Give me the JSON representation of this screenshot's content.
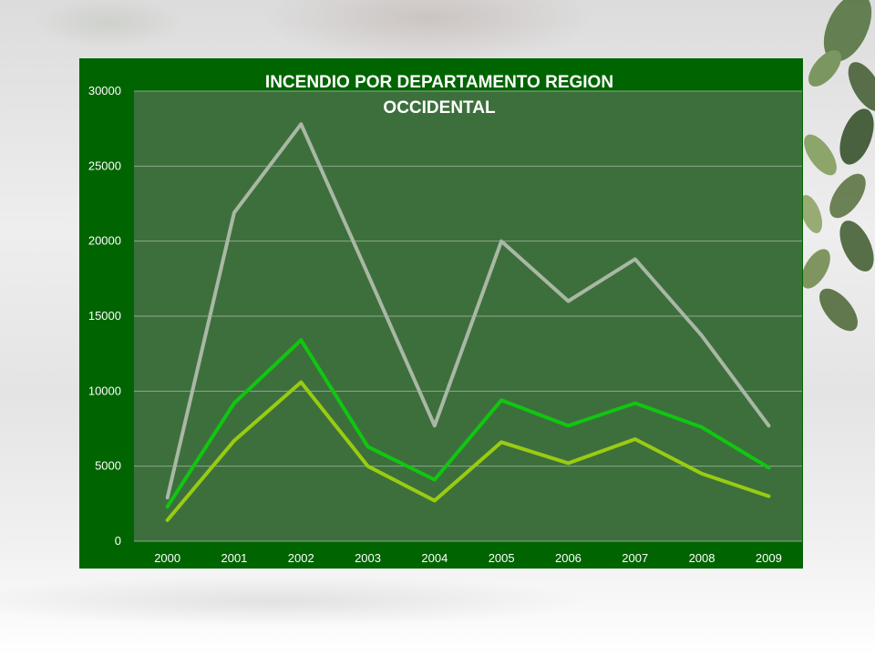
{
  "chart_data": {
    "type": "line",
    "title_lines": [
      "INCENDIO POR DEPARTAMENTO REGION",
      "OCCIDENTAL"
    ],
    "categories": [
      "2000",
      "2001",
      "2002",
      "2003",
      "2004",
      "2005",
      "2006",
      "2007",
      "2008",
      "2009"
    ],
    "y_ticks": [
      "0",
      "5000",
      "10000",
      "15000",
      "20000",
      "25000",
      "30000"
    ],
    "ylim": [
      0,
      30000
    ],
    "grid": true,
    "legend": "none",
    "series": [
      {
        "color": "#a9b8a4",
        "values": [
          2900,
          21900,
          27800,
          17800,
          7700,
          20000,
          16000,
          18800,
          13700,
          7700
        ]
      },
      {
        "color": "#11c611",
        "values": [
          2300,
          9200,
          13400,
          6300,
          4100,
          9400,
          7700,
          9200,
          7600,
          4900
        ]
      },
      {
        "color": "#99cc11",
        "values": [
          1400,
          6700,
          10600,
          5000,
          2700,
          6600,
          5200,
          6800,
          4500,
          3000
        ]
      }
    ]
  }
}
